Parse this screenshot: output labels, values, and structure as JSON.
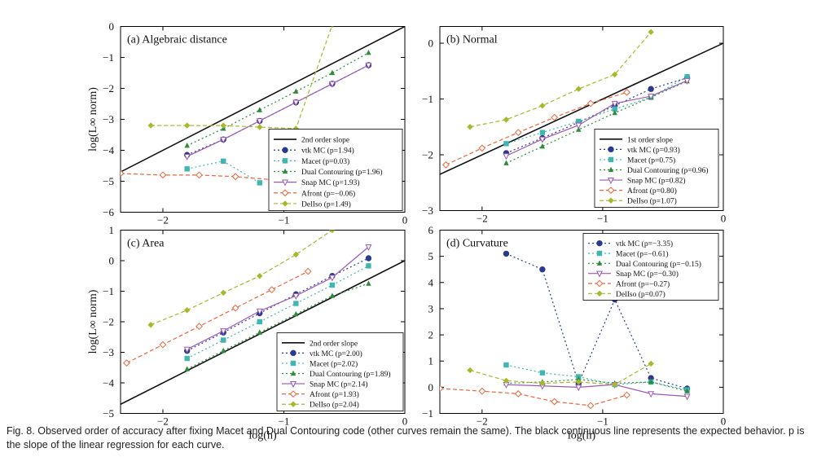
{
  "figure": {
    "caption_label": "Fig. 8.",
    "caption_text": " Observed order of accuracy after fixing Macet and Dual Contouring code (other curves remain the same). The black continuous line represents the expected behavior. p is the slope of the linear regression for each curve."
  },
  "styles": {
    "vtk MC": {
      "color": "#2b3990",
      "dash": "2,3",
      "marker": "circle"
    },
    "Macet": {
      "color": "#3fb7b0",
      "dash": "2,3",
      "marker": "square"
    },
    "Dual Contouring": {
      "color": "#2e8b3a",
      "dash": "2,3",
      "marker": "triangle"
    },
    "Snap MC": {
      "color": "#9b59b6",
      "dash": "",
      "marker": "triangle-down"
    },
    "Afront": {
      "color": "#e8663d",
      "dash": "5,3",
      "marker": "diamond-open"
    },
    "DelIso": {
      "color": "#a8b82a",
      "dash": "5,3",
      "marker": "diamond"
    }
  },
  "chart_data": [
    {
      "type": "line",
      "title": "(a) Algebraic distance",
      "xlabel": "",
      "ylabel": "log(L∞ norm)",
      "xlim": [
        -2.35,
        0
      ],
      "ylim": [
        -6,
        0
      ],
      "xticks": [
        -2,
        -1,
        0
      ],
      "yticks": [
        0,
        -1,
        -2,
        -3,
        -4,
        -5,
        -6
      ],
      "legend_position": "bottom-right",
      "reference": {
        "name": "2nd order slope",
        "x": [
          -2.35,
          0
        ],
        "y": [
          -4.7,
          0
        ]
      },
      "series": [
        {
          "name": "vtk MC",
          "p": "(p=1.94)",
          "x": [
            -1.8,
            -1.5,
            -1.2,
            -0.9,
            -0.6,
            -0.3
          ],
          "y": [
            -4.15,
            -3.65,
            -3.05,
            -2.45,
            -1.85,
            -1.25
          ]
        },
        {
          "name": "Macet",
          "p": "(p=0.03)",
          "x": [
            -1.8,
            -1.5,
            -1.2
          ],
          "y": [
            -4.6,
            -4.35,
            -5.05
          ]
        },
        {
          "name": "Dual Contouring",
          "p": "(p=1.96)",
          "x": [
            -1.8,
            -1.5,
            -1.2,
            -0.9,
            -0.6,
            -0.3
          ],
          "y": [
            -3.85,
            -3.3,
            -2.7,
            -2.1,
            -1.5,
            -0.85
          ]
        },
        {
          "name": "Snap MC",
          "p": "(p=1.93)",
          "x": [
            -1.8,
            -1.5,
            -1.2,
            -0.9,
            -0.6,
            -0.3
          ],
          "y": [
            -4.2,
            -3.65,
            -3.05,
            -2.45,
            -1.85,
            -1.25
          ]
        },
        {
          "name": "Afront",
          "p": "(p=−0.06)",
          "x": [
            -2.35,
            -2.0,
            -1.7,
            -1.4,
            -1.1
          ],
          "y": [
            -4.75,
            -4.8,
            -4.8,
            -4.85,
            -4.95
          ]
        },
        {
          "name": "DelIso",
          "p": "(p=1.49)",
          "x": [
            -2.1,
            -1.8,
            -1.5,
            -1.2,
            -0.9,
            -0.6
          ],
          "y": [
            -3.2,
            -3.2,
            -3.2,
            -3.25,
            -3.3,
            0.05
          ]
        }
      ]
    },
    {
      "type": "line",
      "title": "(b) Normal",
      "xlabel": "",
      "ylabel": "",
      "xlim": [
        -2.35,
        0
      ],
      "ylim": [
        -3,
        0.3
      ],
      "xticks": [
        -2,
        -1,
        0
      ],
      "yticks": [
        0,
        -1,
        -2,
        -3
      ],
      "legend_position": "bottom-right",
      "reference": {
        "name": "1st order slope",
        "x": [
          -2.35,
          0
        ],
        "y": [
          -2.35,
          0
        ]
      },
      "series": [
        {
          "name": "vtk MC",
          "p": "(p=0.93)",
          "x": [
            -1.8,
            -1.5,
            -1.2,
            -0.9,
            -0.6,
            -0.3
          ],
          "y": [
            -1.97,
            -1.7,
            -1.42,
            -1.12,
            -0.82,
            -0.62
          ]
        },
        {
          "name": "Macet",
          "p": "(p=0.75)",
          "x": [
            -1.8,
            -1.5,
            -1.2,
            -0.9,
            -0.6,
            -0.3
          ],
          "y": [
            -1.8,
            -1.6,
            -1.4,
            -1.18,
            -0.97,
            -0.6
          ]
        },
        {
          "name": "Dual Contouring",
          "p": "(p=0.96)",
          "x": [
            -1.8,
            -1.5,
            -1.2,
            -0.9,
            -0.6,
            -0.3
          ],
          "y": [
            -2.15,
            -1.85,
            -1.55,
            -1.25,
            -0.97,
            -0.68
          ]
        },
        {
          "name": "Snap MC",
          "p": "(p=0.82)",
          "x": [
            -1.8,
            -1.5,
            -1.2,
            -0.9,
            -0.6,
            -0.3
          ],
          "y": [
            -2.02,
            -1.72,
            -1.47,
            -1.08,
            -0.95,
            -0.67
          ]
        },
        {
          "name": "Afront",
          "p": "(p=0.80)",
          "x": [
            -2.3,
            -2.0,
            -1.7,
            -1.4,
            -1.1,
            -0.8
          ],
          "y": [
            -2.18,
            -1.88,
            -1.6,
            -1.33,
            -1.08,
            -0.88
          ]
        },
        {
          "name": "DelIso",
          "p": "(p=1.07)",
          "x": [
            -2.1,
            -1.8,
            -1.5,
            -1.2,
            -0.9,
            -0.6
          ],
          "y": [
            -1.5,
            -1.37,
            -1.12,
            -0.82,
            -0.56,
            0.2
          ]
        }
      ]
    },
    {
      "type": "line",
      "title": "(c) Area",
      "xlabel": "log(h)",
      "ylabel": "log(L∞ norm)",
      "xlim": [
        -2.35,
        0
      ],
      "ylim": [
        -5,
        1
      ],
      "xticks": [
        -2,
        -1,
        0
      ],
      "yticks": [
        1,
        0,
        -1,
        -2,
        -3,
        -4,
        -5
      ],
      "legend_position": "bottom-right",
      "reference": {
        "name": "2nd order slope",
        "x": [
          -2.35,
          0
        ],
        "y": [
          -4.7,
          0
        ]
      },
      "series": [
        {
          "name": "vtk MC",
          "p": "(p=2.00)",
          "x": [
            -1.8,
            -1.5,
            -1.2,
            -0.9,
            -0.6,
            -0.3
          ],
          "y": [
            -2.95,
            -2.35,
            -1.72,
            -1.1,
            -0.5,
            0.08
          ]
        },
        {
          "name": "Macet",
          "p": "(p=2.02)",
          "x": [
            -1.8,
            -1.5,
            -1.2,
            -0.9,
            -0.6,
            -0.3
          ],
          "y": [
            -3.2,
            -2.6,
            -2.0,
            -1.4,
            -0.8,
            -0.17
          ]
        },
        {
          "name": "Dual Contouring",
          "p": "(p=1.89)",
          "x": [
            -1.8,
            -1.5,
            -1.2,
            -0.9,
            -0.6,
            -0.3
          ],
          "y": [
            -3.55,
            -2.95,
            -2.35,
            -1.75,
            -1.15,
            -0.75
          ]
        },
        {
          "name": "Snap MC",
          "p": "(p=2.14)",
          "x": [
            -1.8,
            -1.5,
            -1.2,
            -0.9,
            -0.6,
            -0.3
          ],
          "y": [
            -2.9,
            -2.3,
            -1.65,
            -1.15,
            -0.55,
            0.45
          ]
        },
        {
          "name": "Afront",
          "p": "(p=1.93)",
          "x": [
            -2.3,
            -2.0,
            -1.7,
            -1.4,
            -1.1,
            -0.8
          ],
          "y": [
            -3.35,
            -2.75,
            -2.15,
            -1.55,
            -0.95,
            -0.35
          ]
        },
        {
          "name": "DelIso",
          "p": "(p=2.04)",
          "x": [
            -2.1,
            -1.8,
            -1.5,
            -1.2,
            -0.9,
            -0.6
          ],
          "y": [
            -2.1,
            -1.62,
            -1.05,
            -0.5,
            0.2,
            1.0
          ]
        }
      ]
    },
    {
      "type": "line",
      "title": "(d) Curvature",
      "xlabel": "log(h)",
      "ylabel": "",
      "xlim": [
        -2.35,
        0
      ],
      "ylim": [
        -1,
        6
      ],
      "xticks": [
        -2,
        -1,
        0
      ],
      "yticks": [
        6,
        5,
        4,
        3,
        2,
        1,
        0,
        -1
      ],
      "legend_position": "top-right",
      "series": [
        {
          "name": "vtk MC",
          "p": "(p=−3.35)",
          "x": [
            -1.8,
            -1.5,
            -1.2,
            -0.9,
            -0.6,
            -0.3
          ],
          "y": [
            5.1,
            4.5,
            0.15,
            3.35,
            0.35,
            -0.05
          ]
        },
        {
          "name": "Macet",
          "p": "(p=−0.61)",
          "x": [
            -1.8,
            -1.5,
            -1.2,
            -0.9,
            -0.6,
            -0.3
          ],
          "y": [
            0.85,
            0.55,
            0.4,
            0.1,
            0.2,
            -0.1
          ]
        },
        {
          "name": "Dual Contouring",
          "p": "(p=−0.15)",
          "x": [
            -1.8,
            -1.5,
            -1.2,
            -0.9,
            -0.6,
            -0.3
          ],
          "y": [
            0.15,
            0.2,
            0.3,
            0.15,
            0.2,
            -0.15
          ]
        },
        {
          "name": "Snap MC",
          "p": "(p=−0.30)",
          "x": [
            -1.8,
            -1.5,
            -1.2,
            -0.9,
            -0.6,
            -0.3
          ],
          "y": [
            0.1,
            0.05,
            0.0,
            0.1,
            -0.25,
            -0.35
          ]
        },
        {
          "name": "Afront",
          "p": "(p=−0.27)",
          "x": [
            -2.35,
            -2.0,
            -1.7,
            -1.4,
            -1.1,
            -0.8
          ],
          "y": [
            -0.05,
            -0.15,
            -0.25,
            -0.55,
            -0.7,
            -0.3
          ]
        },
        {
          "name": "DelIso",
          "p": "(p=0.07)",
          "x": [
            -2.1,
            -1.8,
            -1.5,
            -1.2,
            -0.9,
            -0.6
          ],
          "y": [
            0.65,
            0.25,
            0.15,
            0.2,
            0.1,
            0.9
          ]
        }
      ]
    }
  ]
}
